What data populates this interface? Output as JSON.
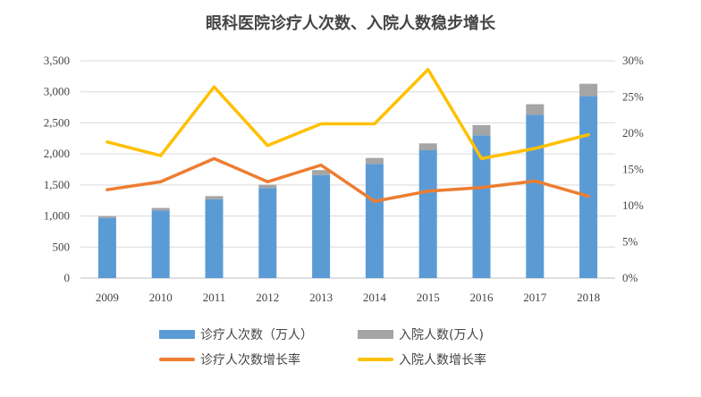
{
  "chart_data": {
    "type": "bar",
    "title": "眼科医院诊疗人次数、入院人数稳步增长",
    "categories": [
      "2009",
      "2010",
      "2011",
      "2012",
      "2013",
      "2014",
      "2015",
      "2016",
      "2017",
      "2018"
    ],
    "series": [
      {
        "name": "诊疗人次数（万人）",
        "kind": "bar",
        "axis": "left",
        "color": "#5B9BD5",
        "values": [
          970,
          1090,
          1270,
          1450,
          1660,
          1840,
          2060,
          2300,
          2630,
          2930
        ]
      },
      {
        "name": "入院人数(万人)",
        "kind": "bar-stacked-top",
        "axis": "left",
        "color": "#A5A5A5",
        "values": [
          28,
          40,
          50,
          55,
          80,
          95,
          110,
          165,
          170,
          200
        ]
      },
      {
        "name": "诊疗人次数增长率",
        "kind": "line",
        "axis": "right",
        "color": "#ED7D31",
        "values": [
          12.2,
          13.3,
          16.5,
          13.3,
          15.6,
          10.6,
          12.0,
          12.5,
          13.4,
          11.3
        ]
      },
      {
        "name": "入院人数增长率",
        "kind": "line",
        "axis": "right",
        "color": "#FFC000",
        "values": [
          18.8,
          16.9,
          26.4,
          18.3,
          21.3,
          21.3,
          28.8,
          16.5,
          17.9,
          19.8
        ]
      }
    ],
    "y_left": {
      "min": 0,
      "max": 3500,
      "ticks": [
        "0",
        "500",
        "1,000",
        "1,500",
        "2,000",
        "2,500",
        "3,000",
        "3,500"
      ]
    },
    "y_right": {
      "min": 0,
      "max": 30,
      "ticks": [
        "0%",
        "5%",
        "10%",
        "15%",
        "20%",
        "25%",
        "30%"
      ]
    },
    "grid": true,
    "legend_position": "bottom"
  }
}
